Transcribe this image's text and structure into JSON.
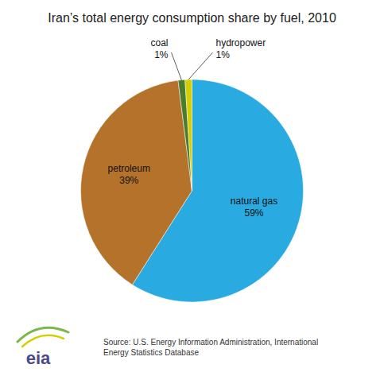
{
  "chart_data": {
    "type": "pie",
    "title": "Iran’s total energy consumption share by fuel, 2010",
    "categories": [
      "natural gas",
      "petroleum",
      "coal",
      "hydropower"
    ],
    "values": [
      59,
      39,
      1,
      1
    ],
    "value_labels": [
      "59%",
      "39%",
      "1%",
      "1%"
    ],
    "colors": [
      "#29aae1",
      "#b5722b",
      "#4a7c2f",
      "#d4cf00"
    ],
    "data_labels": true,
    "annotations": [
      "Source: U.S. Energy Information Administration, International\nEnergy Statistics Database",
      "eia"
    ]
  }
}
